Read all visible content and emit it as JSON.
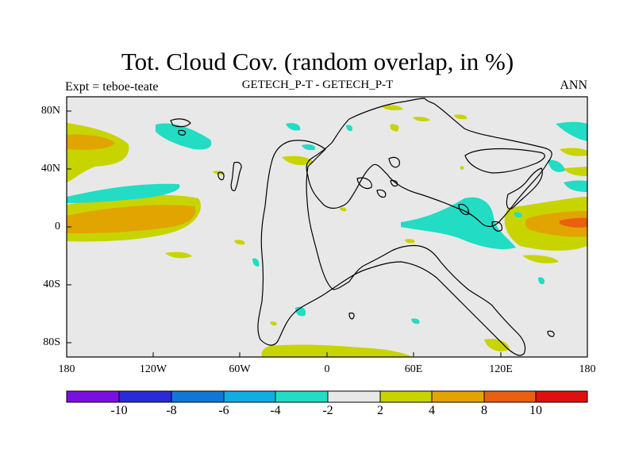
{
  "title": "Tot. Cloud Cov. (random overlap, in %)",
  "subtitle_left": "Expt = teboe-teate",
  "subtitle_center": "GETECH_P-T - GETECH_P-T",
  "subtitle_right": "ANN",
  "x_ticks": [
    "180",
    "120W",
    "60W",
    "0",
    "60E",
    "120E",
    "180"
  ],
  "y_ticks": [
    "80N",
    "40N",
    "0",
    "40S",
    "80S"
  ],
  "colorbar": {
    "labels": [
      "-10",
      "-8",
      "-6",
      "-4",
      "-2",
      "2",
      "4",
      "8",
      "10"
    ],
    "colors": [
      "#7a10e0",
      "#2a2ad8",
      "#0f78d6",
      "#10aee0",
      "#22dcc4",
      "#e8e8e8",
      "#c8d400",
      "#e2a400",
      "#e86010",
      "#e01010"
    ]
  },
  "chart_data": {
    "type": "heatmap",
    "title": "Tot. Cloud Cov. (random overlap, in %)",
    "projection": "cylindrical equidistant",
    "xlim": [
      -180,
      180
    ],
    "ylim": [
      -90,
      90
    ],
    "levels": [
      -10,
      -8,
      -6,
      -4,
      -2,
      2,
      4,
      8,
      10
    ],
    "background_range": "-2 to 2"
  }
}
